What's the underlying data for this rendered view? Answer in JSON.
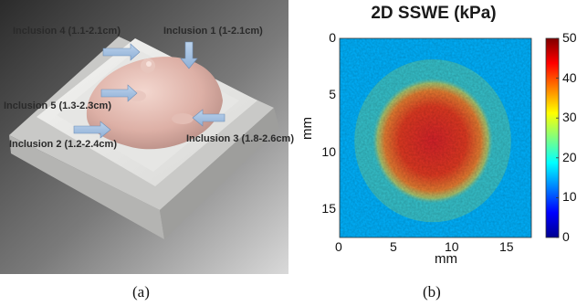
{
  "panel_a": {
    "labels": [
      "Inclusion 4 (1.1-2.1cm)",
      "Inclusion 1 (1-2.1cm)",
      "Inclusion 5 (1.3-2.3cm)",
      "Inclusion 2 (1.2-2.4cm)",
      "Inclusion 3 (1.8-2.6cm)"
    ],
    "caption": "(a)"
  },
  "panel_b": {
    "caption": "(b)",
    "chart_data": {
      "type": "heatmap",
      "title": "2D SSWE (kPa)",
      "xlabel": "mm",
      "ylabel": "mm",
      "xlim": [
        0,
        17.5
      ],
      "ylim": [
        0,
        17.5
      ],
      "x_ticks": [
        "0",
        "5",
        "10",
        "15"
      ],
      "y_ticks": [
        "0",
        "5",
        "10",
        "15"
      ],
      "colorbar": {
        "min": 0,
        "max": 50,
        "ticks": [
          "50",
          "40",
          "30",
          "20",
          "10",
          "0"
        ],
        "colormap": "jet"
      },
      "background_value_kpa": 15,
      "inclusion": {
        "center_x_mm": 8.5,
        "center_y_mm": 9.0,
        "radius_mm": 5.5,
        "peak_value_kpa": 45
      }
    }
  }
}
